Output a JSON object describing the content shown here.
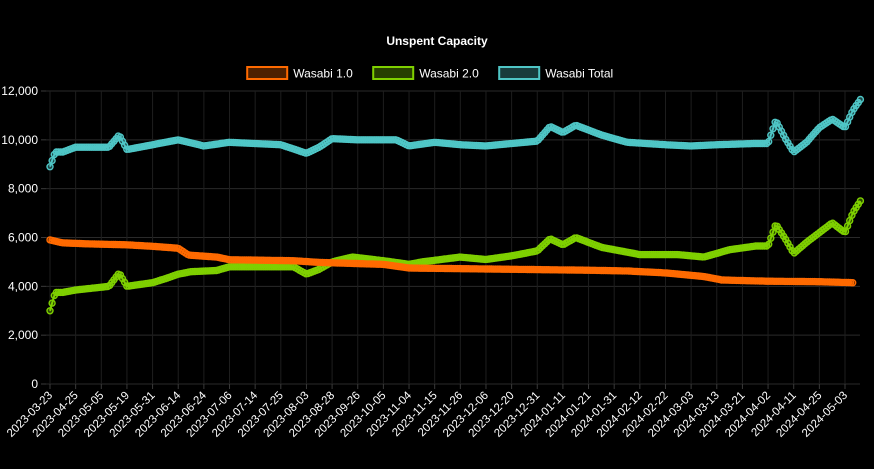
{
  "chart_data": {
    "type": "line",
    "title": "Unspent Capacity",
    "xlabel": "",
    "ylabel": "",
    "ylim": [
      0,
      12000
    ],
    "yticks": [
      0,
      2000,
      4000,
      6000,
      8000,
      10000,
      12000
    ],
    "ytick_labels": [
      "0",
      "2,000",
      "4,000",
      "6,000",
      "8,000",
      "10,000",
      "12,000"
    ],
    "x_tick_labels": [
      "2023-03-23",
      "2023-04-25",
      "2023-05-05",
      "2023-05-19",
      "2023-05-31",
      "2023-06-14",
      "2023-06-24",
      "2023-07-06",
      "2023-07-14",
      "2023-07-25",
      "2023-08-03",
      "2023-08-28",
      "2023-09-26",
      "2023-10-05",
      "2023-11-04",
      "2023-11-15",
      "2023-11-26",
      "2023-12-06",
      "2023-12-20",
      "2023-12-31",
      "2024-01-11",
      "2024-01-21",
      "2024-01-31",
      "2024-02-12",
      "2024-02-22",
      "2024-03-03",
      "2024-03-13",
      "2024-03-21",
      "2024-04-02",
      "2024-04-11",
      "2024-04-25",
      "2024-05-03"
    ],
    "grid": true,
    "legend_position": "top",
    "series": [
      {
        "name": "Wasabi 1.0",
        "color": "#ff6a00",
        "keyframes": [
          [
            0,
            5900
          ],
          [
            0.5,
            5780
          ],
          [
            1.5,
            5740
          ],
          [
            3,
            5700
          ],
          [
            4,
            5640
          ],
          [
            5,
            5560
          ],
          [
            5.4,
            5280
          ],
          [
            6.5,
            5200
          ],
          [
            7,
            5090
          ],
          [
            9.5,
            5050
          ],
          [
            10.5,
            4980
          ],
          [
            13,
            4900
          ],
          [
            14,
            4750
          ],
          [
            21,
            4660
          ],
          [
            22.5,
            4630
          ],
          [
            24,
            4550
          ],
          [
            25.5,
            4400
          ],
          [
            26.2,
            4260
          ],
          [
            28,
            4210
          ],
          [
            30,
            4190
          ],
          [
            31.3,
            4150
          ]
        ]
      },
      {
        "name": "Wasabi 2.0",
        "color": "#7fd000",
        "keyframes": [
          [
            0,
            3000
          ],
          [
            0.2,
            3750
          ],
          [
            0.5,
            3750
          ],
          [
            1,
            3850
          ],
          [
            2.3,
            4000
          ],
          [
            2.7,
            4550
          ],
          [
            3,
            4000
          ],
          [
            4,
            4150
          ],
          [
            4.6,
            4350
          ],
          [
            5,
            4500
          ],
          [
            5.5,
            4600
          ],
          [
            6.5,
            4650
          ],
          [
            7,
            4800
          ],
          [
            9.5,
            4800
          ],
          [
            10,
            4500
          ],
          [
            10.5,
            4700
          ],
          [
            11,
            5000
          ],
          [
            11.8,
            5200
          ],
          [
            13,
            5050
          ],
          [
            14,
            4900
          ],
          [
            14.5,
            5000
          ],
          [
            16,
            5200
          ],
          [
            17,
            5100
          ],
          [
            18,
            5250
          ],
          [
            19,
            5450
          ],
          [
            19.5,
            5950
          ],
          [
            20,
            5700
          ],
          [
            20.5,
            6000
          ],
          [
            21.5,
            5600
          ],
          [
            23,
            5300
          ],
          [
            24.5,
            5300
          ],
          [
            25.5,
            5200
          ],
          [
            26.5,
            5500
          ],
          [
            27.5,
            5650
          ],
          [
            28,
            5650
          ],
          [
            28.3,
            6550
          ],
          [
            28.7,
            5900
          ],
          [
            29,
            5350
          ],
          [
            29.5,
            5800
          ],
          [
            30,
            6200
          ],
          [
            30.5,
            6600
          ],
          [
            31,
            6200
          ],
          [
            31.3,
            7000
          ],
          [
            31.6,
            7500
          ]
        ]
      },
      {
        "name": "Wasabi Total",
        "color": "#4fc6c6",
        "keyframes": [
          [
            0,
            8900
          ],
          [
            0.2,
            9500
          ],
          [
            0.5,
            9500
          ],
          [
            1,
            9700
          ],
          [
            2.3,
            9700
          ],
          [
            2.7,
            10200
          ],
          [
            3,
            9600
          ],
          [
            4,
            9800
          ],
          [
            5,
            10000
          ],
          [
            6,
            9750
          ],
          [
            7,
            9900
          ],
          [
            9,
            9800
          ],
          [
            10,
            9450
          ],
          [
            10.5,
            9700
          ],
          [
            11,
            10050
          ],
          [
            12,
            10000
          ],
          [
            13.5,
            10000
          ],
          [
            14,
            9750
          ],
          [
            15,
            9900
          ],
          [
            16,
            9800
          ],
          [
            17,
            9750
          ],
          [
            18,
            9850
          ],
          [
            19,
            9950
          ],
          [
            19.5,
            10550
          ],
          [
            20,
            10300
          ],
          [
            20.5,
            10600
          ],
          [
            21.5,
            10200
          ],
          [
            22.5,
            9900
          ],
          [
            24,
            9800
          ],
          [
            25,
            9750
          ],
          [
            26,
            9800
          ],
          [
            27.5,
            9850
          ],
          [
            28,
            9850
          ],
          [
            28.3,
            10800
          ],
          [
            28.7,
            10000
          ],
          [
            29,
            9500
          ],
          [
            29.5,
            9900
          ],
          [
            30,
            10500
          ],
          [
            30.5,
            10850
          ],
          [
            31,
            10500
          ],
          [
            31.3,
            11200
          ],
          [
            31.6,
            11650
          ]
        ]
      }
    ]
  }
}
